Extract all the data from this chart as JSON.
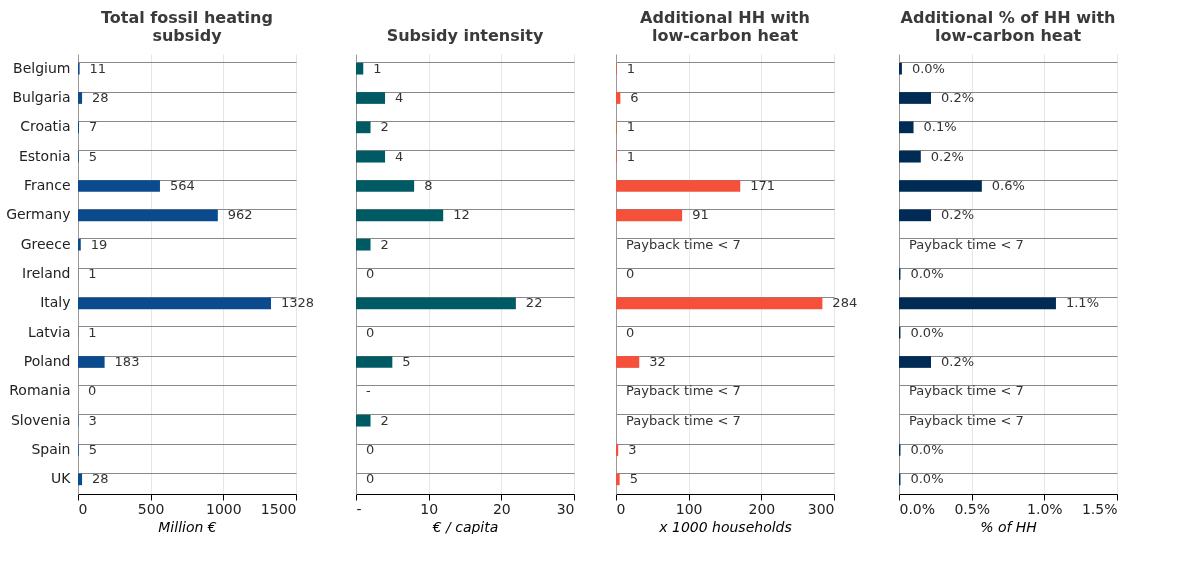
{
  "chart_data": [
    {
      "type": "bar",
      "orientation": "horizontal",
      "title": "Total fossil heating subsidy",
      "xlabel": "Million €",
      "categories": [
        "Belgium",
        "Bulgaria",
        "Croatia",
        "Estonia",
        "France",
        "Germany",
        "Greece",
        "Ireland",
        "Italy",
        "Latvia",
        "Poland",
        "Romania",
        "Slovenia",
        "Spain",
        "UK"
      ],
      "values": [
        11,
        28,
        7,
        5,
        564,
        962,
        19,
        1,
        1328,
        1,
        183,
        0,
        3,
        5,
        28
      ],
      "color": "#0b4a8c",
      "data_labels": true,
      "xlim": [
        0,
        1500
      ],
      "xticks": [
        0,
        500,
        1000,
        1500
      ],
      "grid": true
    },
    {
      "type": "bar",
      "orientation": "horizontal",
      "title": "Subsidy intensity",
      "xlabel": "€ / capita",
      "values": [
        1,
        4,
        2,
        4,
        8,
        12,
        2,
        0,
        22,
        0,
        5,
        null,
        2,
        0,
        0
      ],
      "value_labels": [
        "1",
        "4",
        "2",
        "4",
        "8",
        "12",
        "2",
        "0",
        "22",
        "0",
        "5",
        "-",
        "2",
        "0",
        "0"
      ],
      "color": "#005a64",
      "xlim": [
        0,
        30
      ],
      "xticks": [
        {
          "value": 0,
          "label": "-"
        },
        10,
        20,
        30
      ],
      "grid": true,
      "tick_labels": "x"
    },
    {
      "type": "bar",
      "orientation": "horizontal",
      "title": "Additional HH with low-carbon heat",
      "xlabel": "x 1000 households",
      "values": [
        1,
        6,
        1,
        1,
        171,
        91,
        null,
        0,
        284,
        0,
        32,
        null,
        null,
        3,
        5
      ],
      "value_labels": [
        "1",
        "6",
        "1",
        "1",
        "171",
        "91",
        "Payback time < 7",
        "0",
        "284",
        "0",
        "32",
        "Payback time < 7",
        "Payback time < 7",
        "3",
        "5"
      ],
      "color": "#f4503a",
      "xlim": [
        0,
        300
      ],
      "xticks": [
        0,
        100,
        200,
        300
      ],
      "grid": true,
      "tick_labels": "x"
    },
    {
      "type": "bar",
      "orientation": "horizontal",
      "title": "Additional % of HH with low-carbon heat",
      "xlabel": "% of HH",
      "values": [
        0.02,
        0.22,
        0.1,
        0.15,
        0.57,
        0.22,
        null,
        0.01,
        1.08,
        0.01,
        0.22,
        null,
        null,
        0.01,
        0.01
      ],
      "value_labels": [
        "0.0%",
        "0.2%",
        "0.1%",
        "0.2%",
        "0.6%",
        "0.2%",
        "Payback time < 7",
        "0.0%",
        "1.1%",
        "0.0%",
        "0.2%",
        "Payback time < 7",
        "Payback time < 7",
        "0.0%",
        "0.0%"
      ],
      "color": "#002b55",
      "xlim": [
        0,
        1.5
      ],
      "xticks": [
        {
          "value": 0,
          "label": "0.0%"
        },
        {
          "value": 0.5,
          "label": "0.5%"
        },
        {
          "value": 1,
          "label": "1.0%"
        },
        {
          "value": 1.5,
          "label": "1.5%"
        }
      ],
      "grid": true,
      "tick_labels": "x"
    }
  ]
}
